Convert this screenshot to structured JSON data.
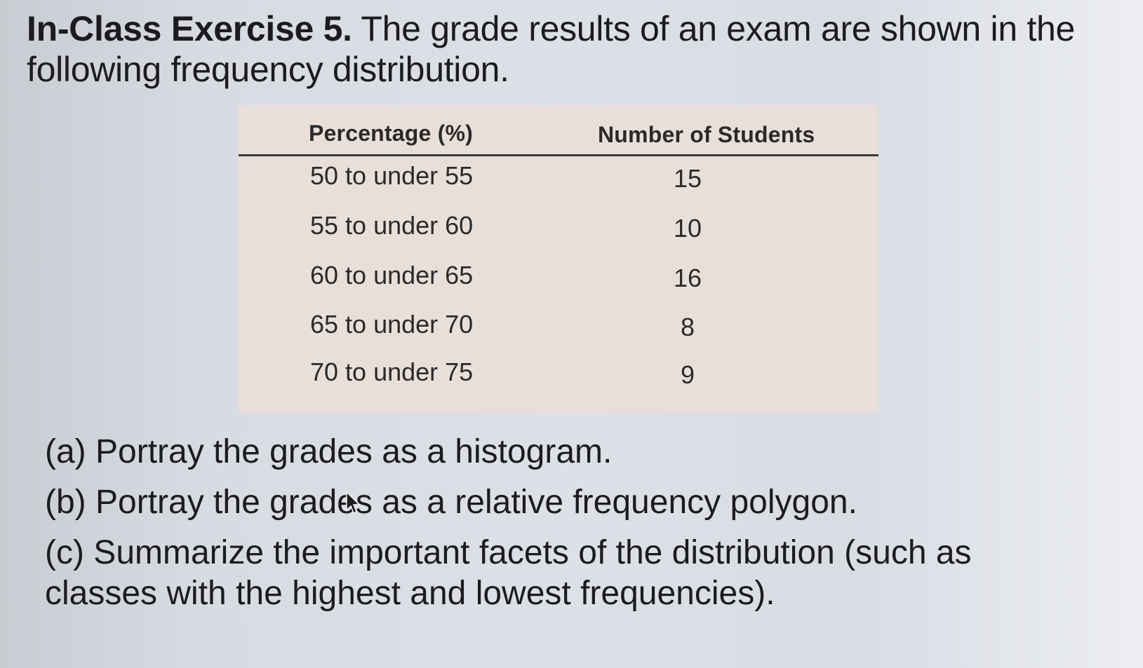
{
  "heading": {
    "bold_part": "In-Class Exercise 5.",
    "rest": " The grade results of an exam are shown in the following frequency distribution."
  },
  "table": {
    "headers": {
      "percentage": "Percentage (%)",
      "students": "Number of Students"
    },
    "rows": [
      {
        "range": "50 to under 55",
        "count": "15"
      },
      {
        "range": "55 to under 60",
        "count": "10"
      },
      {
        "range": "60 to under 65",
        "count": "16"
      },
      {
        "range": "65 to under 70",
        "count": "8"
      },
      {
        "range": "70 to under 75",
        "count": "9"
      }
    ]
  },
  "questions": {
    "a": "(a) Portray the grades as a histogram.",
    "b": "(b) Portray the grades as a relative frequency polygon.",
    "c": "(c) Summarize the important facets of the distribution (such as classes with the highest and lowest frequencies)."
  },
  "icons": {
    "cursor": "mouse-pointer-icon"
  }
}
